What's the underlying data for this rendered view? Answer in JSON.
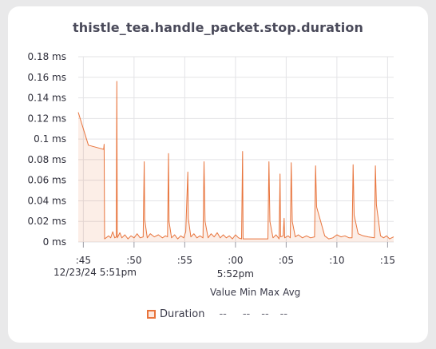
{
  "chart_data": {
    "type": "line",
    "title": "thistle_tea.handle_packet.stop.duration",
    "y_ticks": [
      "0 ms",
      "0.02 ms",
      "0.04 ms",
      "0.06 ms",
      "0.08 ms",
      "0.1 ms",
      "0.12 ms",
      "0.14 ms",
      "0.16 ms",
      "0.18 ms"
    ],
    "ylim": [
      0,
      0.18
    ],
    "x_ticks": [
      ":45",
      ":50",
      ":55",
      ":00",
      ":05",
      ":10",
      ":15"
    ],
    "x_tick_seconds": [
      45,
      50,
      55,
      60,
      65,
      70,
      75
    ],
    "date_label": "12/23/24 5:51pm",
    "minute_label": "5:52pm",
    "xlim_seconds": [
      44.5,
      75.6
    ],
    "grid": true,
    "series": [
      {
        "name": "Duration",
        "color": "#e8743c",
        "points": [
          [
            44.5,
            0.126
          ],
          [
            45.5,
            0.094
          ],
          [
            47.0,
            0.09
          ],
          [
            47.05,
            0.095
          ],
          [
            47.1,
            0.003
          ],
          [
            47.5,
            0.006
          ],
          [
            47.7,
            0.004
          ],
          [
            47.9,
            0.01
          ],
          [
            48.1,
            0.004
          ],
          [
            48.25,
            0.005
          ],
          [
            48.3,
            0.156
          ],
          [
            48.35,
            0.004
          ],
          [
            48.6,
            0.009
          ],
          [
            48.8,
            0.004
          ],
          [
            49.1,
            0.007
          ],
          [
            49.4,
            0.003
          ],
          [
            49.7,
            0.006
          ],
          [
            50.0,
            0.004
          ],
          [
            50.3,
            0.008
          ],
          [
            50.6,
            0.004
          ],
          [
            50.9,
            0.005
          ],
          [
            51.0,
            0.078
          ],
          [
            51.05,
            0.022
          ],
          [
            51.3,
            0.004
          ],
          [
            51.6,
            0.008
          ],
          [
            52.0,
            0.005
          ],
          [
            52.4,
            0.007
          ],
          [
            52.8,
            0.004
          ],
          [
            53.1,
            0.006
          ],
          [
            53.3,
            0.005
          ],
          [
            53.4,
            0.086
          ],
          [
            53.45,
            0.02
          ],
          [
            53.7,
            0.004
          ],
          [
            54.0,
            0.007
          ],
          [
            54.3,
            0.003
          ],
          [
            54.6,
            0.006
          ],
          [
            54.9,
            0.004
          ],
          [
            55.1,
            0.01
          ],
          [
            55.3,
            0.068
          ],
          [
            55.35,
            0.023
          ],
          [
            55.6,
            0.005
          ],
          [
            55.9,
            0.008
          ],
          [
            56.2,
            0.004
          ],
          [
            56.5,
            0.006
          ],
          [
            56.8,
            0.004
          ],
          [
            56.9,
            0.078
          ],
          [
            57.0,
            0.02
          ],
          [
            57.3,
            0.004
          ],
          [
            57.6,
            0.008
          ],
          [
            57.9,
            0.005
          ],
          [
            58.2,
            0.009
          ],
          [
            58.5,
            0.004
          ],
          [
            58.8,
            0.007
          ],
          [
            59.1,
            0.004
          ],
          [
            59.4,
            0.006
          ],
          [
            59.7,
            0.003
          ],
          [
            60.0,
            0.007
          ],
          [
            60.3,
            0.004
          ],
          [
            60.6,
            0.003
          ],
          [
            60.7,
            0.088
          ],
          [
            60.75,
            0.003
          ],
          [
            61.2,
            0.003
          ],
          [
            62.0,
            0.003
          ],
          [
            62.8,
            0.003
          ],
          [
            63.2,
            0.003
          ],
          [
            63.3,
            0.078
          ],
          [
            63.4,
            0.02
          ],
          [
            63.7,
            0.004
          ],
          [
            64.0,
            0.007
          ],
          [
            64.3,
            0.003
          ],
          [
            64.4,
            0.066
          ],
          [
            64.45,
            0.005
          ],
          [
            64.7,
            0.006
          ],
          [
            64.8,
            0.023
          ],
          [
            64.85,
            0.004
          ],
          [
            65.2,
            0.006
          ],
          [
            65.4,
            0.004
          ],
          [
            65.5,
            0.077
          ],
          [
            65.6,
            0.02
          ],
          [
            65.9,
            0.005
          ],
          [
            66.2,
            0.007
          ],
          [
            66.6,
            0.004
          ],
          [
            67.0,
            0.006
          ],
          [
            67.4,
            0.004
          ],
          [
            67.8,
            0.005
          ],
          [
            67.9,
            0.074
          ],
          [
            68.0,
            0.034
          ],
          [
            68.4,
            0.02
          ],
          [
            68.8,
            0.006
          ],
          [
            69.2,
            0.003
          ],
          [
            69.6,
            0.004
          ],
          [
            70.0,
            0.007
          ],
          [
            70.4,
            0.005
          ],
          [
            70.8,
            0.006
          ],
          [
            71.2,
            0.004
          ],
          [
            71.5,
            0.004
          ],
          [
            71.6,
            0.075
          ],
          [
            71.7,
            0.026
          ],
          [
            72.1,
            0.008
          ],
          [
            72.6,
            0.006
          ],
          [
            73.1,
            0.005
          ],
          [
            73.7,
            0.004
          ],
          [
            73.8,
            0.074
          ],
          [
            73.9,
            0.036
          ],
          [
            74.3,
            0.006
          ],
          [
            74.6,
            0.004
          ],
          [
            74.9,
            0.006
          ],
          [
            75.2,
            0.003
          ],
          [
            75.6,
            0.005
          ]
        ]
      }
    ],
    "legend": {
      "headers": [
        "Value",
        "Min",
        "Max",
        "Avg"
      ],
      "entries": [
        {
          "name": "Duration",
          "value": "--",
          "min": "--",
          "max": "--",
          "avg": "--"
        }
      ]
    }
  }
}
